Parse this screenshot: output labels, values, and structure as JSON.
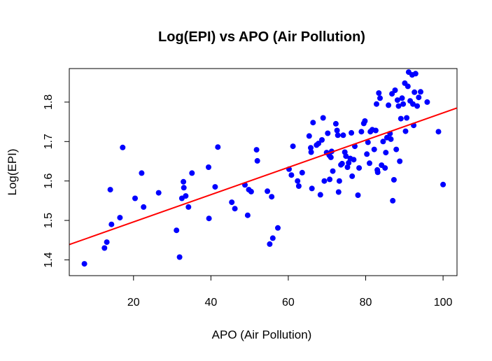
{
  "chart_data": {
    "type": "scatter",
    "title": "Log(EPI) vs APO (Air Pollution)",
    "xlabel": "APO (Air Pollution)",
    "ylabel": "Log(EPI)",
    "xlim": [
      3.4,
      103.6
    ],
    "ylim": [
      1.36,
      1.885
    ],
    "x_ticks": [
      20,
      40,
      60,
      80,
      100
    ],
    "y_ticks": [
      1.4,
      1.5,
      1.6,
      1.7,
      1.8
    ],
    "x_tick_labels": [
      "20",
      "40",
      "60",
      "80",
      "100"
    ],
    "y_tick_labels": [
      "1.4",
      "1.5",
      "1.6",
      "1.7",
      "1.8"
    ],
    "grid": false,
    "point_color": "#0000ff",
    "regression": {
      "color": "#ff0000",
      "intercept": 1.427,
      "slope": 0.003457
    },
    "points": [
      [
        7.3,
        1.39
      ],
      [
        12.5,
        1.43
      ],
      [
        13.1,
        1.445
      ],
      [
        14.0,
        1.578
      ],
      [
        14.3,
        1.49
      ],
      [
        16.5,
        1.507
      ],
      [
        17.2,
        1.685
      ],
      [
        20.4,
        1.556
      ],
      [
        22.1,
        1.62
      ],
      [
        22.6,
        1.534
      ],
      [
        26.5,
        1.57
      ],
      [
        31.1,
        1.475
      ],
      [
        31.9,
        1.407
      ],
      [
        32.5,
        1.556
      ],
      [
        32.9,
        1.598
      ],
      [
        33.0,
        1.583
      ],
      [
        33.5,
        1.562
      ],
      [
        34.2,
        1.534
      ],
      [
        35.1,
        1.62
      ],
      [
        39.4,
        1.635
      ],
      [
        39.5,
        1.505
      ],
      [
        41.1,
        1.585
      ],
      [
        41.8,
        1.686
      ],
      [
        45.4,
        1.546
      ],
      [
        46.2,
        1.53
      ],
      [
        48.8,
        1.59
      ],
      [
        49.5,
        1.513
      ],
      [
        49.8,
        1.578
      ],
      [
        50.4,
        1.573
      ],
      [
        51.8,
        1.679
      ],
      [
        52.0,
        1.651
      ],
      [
        54.6,
        1.574
      ],
      [
        55.2,
        1.44
      ],
      [
        55.7,
        1.56
      ],
      [
        56.0,
        1.455
      ],
      [
        57.3,
        1.481
      ],
      [
        60.2,
        1.63
      ],
      [
        60.8,
        1.615
      ],
      [
        61.2,
        1.688
      ],
      [
        62.4,
        1.6
      ],
      [
        62.7,
        1.587
      ],
      [
        63.6,
        1.621
      ],
      [
        65.4,
        1.714
      ],
      [
        65.8,
        1.684
      ],
      [
        65.9,
        1.673
      ],
      [
        66.1,
        1.581
      ],
      [
        66.4,
        1.748
      ],
      [
        67.3,
        1.691
      ],
      [
        67.8,
        1.695
      ],
      [
        68.3,
        1.565
      ],
      [
        68.7,
        1.704
      ],
      [
        69.0,
        1.76
      ],
      [
        69.3,
        1.6
      ],
      [
        69.9,
        1.672
      ],
      [
        70.2,
        1.721
      ],
      [
        70.6,
        1.665
      ],
      [
        70.7,
        1.604
      ],
      [
        71.0,
        1.66
      ],
      [
        71.2,
        1.675
      ],
      [
        71.5,
        1.625
      ],
      [
        72.3,
        1.745
      ],
      [
        72.6,
        1.728
      ],
      [
        72.8,
        1.716
      ],
      [
        73.0,
        1.572
      ],
      [
        73.2,
        1.6
      ],
      [
        73.6,
        1.641
      ],
      [
        73.9,
        1.644
      ],
      [
        74.2,
        1.716
      ],
      [
        74.6,
        1.673
      ],
      [
        74.9,
        1.663
      ],
      [
        75.3,
        1.635
      ],
      [
        75.6,
        1.646
      ],
      [
        76.0,
        1.657
      ],
      [
        76.3,
        1.722
      ],
      [
        76.5,
        1.612
      ],
      [
        76.9,
        1.654
      ],
      [
        77.2,
        1.688
      ],
      [
        78.0,
        1.564
      ],
      [
        78.3,
        1.633
      ],
      [
        78.9,
        1.725
      ],
      [
        79.5,
        1.746
      ],
      [
        79.8,
        1.752
      ],
      [
        80.3,
        1.668
      ],
      [
        80.6,
        1.698
      ],
      [
        81.0,
        1.645
      ],
      [
        81.2,
        1.725
      ],
      [
        81.7,
        1.73
      ],
      [
        82.2,
        1.68
      ],
      [
        82.6,
        1.728
      ],
      [
        82.8,
        1.795
      ],
      [
        83.0,
        1.628
      ],
      [
        83.1,
        1.622
      ],
      [
        83.4,
        1.823
      ],
      [
        83.7,
        1.81
      ],
      [
        84.1,
        1.64
      ],
      [
        84.5,
        1.7
      ],
      [
        85.0,
        1.633
      ],
      [
        85.2,
        1.672
      ],
      [
        85.5,
        1.71
      ],
      [
        85.9,
        1.792
      ],
      [
        86.3,
        1.72
      ],
      [
        86.5,
        1.706
      ],
      [
        86.8,
        1.821
      ],
      [
        87.0,
        1.55
      ],
      [
        87.3,
        1.603
      ],
      [
        87.6,
        1.83
      ],
      [
        87.9,
        1.68
      ],
      [
        88.2,
        1.805
      ],
      [
        88.5,
        1.79
      ],
      [
        88.8,
        1.65
      ],
      [
        89.1,
        1.758
      ],
      [
        89.4,
        1.81
      ],
      [
        89.7,
        1.795
      ],
      [
        90.1,
        1.848
      ],
      [
        90.3,
        1.726
      ],
      [
        90.6,
        1.76
      ],
      [
        90.9,
        1.84
      ],
      [
        91.1,
        1.876
      ],
      [
        91.5,
        1.803
      ],
      [
        92.0,
        1.869
      ],
      [
        92.2,
        1.795
      ],
      [
        92.4,
        1.741
      ],
      [
        92.6,
        1.825
      ],
      [
        92.9,
        1.872
      ],
      [
        93.3,
        1.79
      ],
      [
        93.7,
        1.812
      ],
      [
        94.2,
        1.826
      ],
      [
        95.9,
        1.8
      ],
      [
        98.8,
        1.725
      ],
      [
        100.0,
        1.591
      ]
    ]
  }
}
